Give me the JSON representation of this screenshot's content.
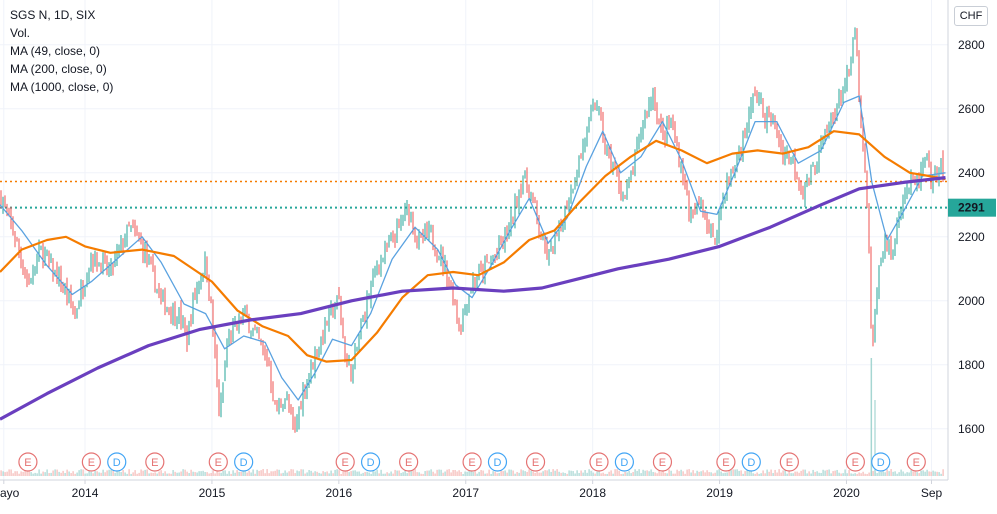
{
  "legend": {
    "symbol": "SGS N, 1D, SIX",
    "volume": "Vol.",
    "ma49": "MA (49, close, 0)",
    "ma200": "MA (200, close, 0)",
    "ma1000": "MA (1000, close, 0)"
  },
  "currency_label": "CHF",
  "colors": {
    "up": "#26a69a",
    "down": "#ef5350",
    "ma49": "#5aa2e0",
    "ma200": "#f57c00",
    "ma1000": "#6a3fbf",
    "last_price": "#26a69a",
    "ref_line": "#f57c00",
    "earnings": "#e57373",
    "dividend": "#42a5f5"
  },
  "chart_data": {
    "type": "candlestick",
    "title": "SGS N, 1D, SIX",
    "ylim": [
      1440,
      2940
    ],
    "y_ticks": [
      1600,
      1800,
      2000,
      2200,
      2400,
      2600,
      2800
    ],
    "x_range": [
      2013.33,
      2020.8
    ],
    "x_ticks": [
      {
        "label": "ayo",
        "x": 2013.36
      },
      {
        "label": "2014",
        "x": 2014.0
      },
      {
        "label": "2015",
        "x": 2015.0
      },
      {
        "label": "2016",
        "x": 2016.0
      },
      {
        "label": "2017",
        "x": 2017.0
      },
      {
        "label": "2018",
        "x": 2018.0
      },
      {
        "label": "2019",
        "x": 2019.0
      },
      {
        "label": "2020",
        "x": 2020.0
      },
      {
        "label": "Sep",
        "x": 2020.67
      }
    ],
    "last_price": {
      "value": 2291,
      "label": "2291"
    },
    "reference_line": {
      "value": 2373
    },
    "price_path": [
      [
        2013.33,
        2330
      ],
      [
        2013.45,
        2200
      ],
      [
        2013.55,
        2050
      ],
      [
        2013.65,
        2160
      ],
      [
        2013.8,
        2060
      ],
      [
        2013.92,
        1960
      ],
      [
        2014.05,
        2140
      ],
      [
        2014.2,
        2090
      ],
      [
        2014.35,
        2230
      ],
      [
        2014.45,
        2170
      ],
      [
        2014.6,
        2000
      ],
      [
        2014.75,
        1950
      ],
      [
        2014.8,
        1870
      ],
      [
        2014.85,
        2000
      ],
      [
        2014.95,
        2130
      ],
      [
        2015.0,
        1950
      ],
      [
        2015.06,
        1630
      ],
      [
        2015.12,
        1870
      ],
      [
        2015.25,
        1960
      ],
      [
        2015.35,
        1890
      ],
      [
        2015.45,
        1800
      ],
      [
        2015.5,
        1650
      ],
      [
        2015.58,
        1700
      ],
      [
        2015.65,
        1590
      ],
      [
        2015.72,
        1720
      ],
      [
        2015.8,
        1810
      ],
      [
        2015.9,
        1930
      ],
      [
        2016.0,
        2010
      ],
      [
        2016.05,
        1820
      ],
      [
        2016.1,
        1770
      ],
      [
        2016.2,
        1960
      ],
      [
        2016.3,
        2110
      ],
      [
        2016.4,
        2170
      ],
      [
        2016.5,
        2250
      ],
      [
        2016.55,
        2290
      ],
      [
        2016.62,
        2180
      ],
      [
        2016.72,
        2210
      ],
      [
        2016.82,
        2120
      ],
      [
        2016.9,
        2020
      ],
      [
        2016.95,
        1920
      ],
      [
        2017.05,
        2060
      ],
      [
        2017.15,
        2100
      ],
      [
        2017.25,
        2150
      ],
      [
        2017.35,
        2230
      ],
      [
        2017.45,
        2390
      ],
      [
        2017.52,
        2330
      ],
      [
        2017.58,
        2220
      ],
      [
        2017.65,
        2130
      ],
      [
        2017.72,
        2200
      ],
      [
        2017.8,
        2310
      ],
      [
        2017.88,
        2420
      ],
      [
        2017.95,
        2520
      ],
      [
        2018.03,
        2630
      ],
      [
        2018.1,
        2470
      ],
      [
        2018.18,
        2400
      ],
      [
        2018.25,
        2310
      ],
      [
        2018.32,
        2420
      ],
      [
        2018.4,
        2560
      ],
      [
        2018.48,
        2650
      ],
      [
        2018.55,
        2500
      ],
      [
        2018.62,
        2560
      ],
      [
        2018.7,
        2410
      ],
      [
        2018.78,
        2250
      ],
      [
        2018.85,
        2310
      ],
      [
        2018.95,
        2180
      ],
      [
        2019.05,
        2360
      ],
      [
        2019.12,
        2420
      ],
      [
        2019.2,
        2520
      ],
      [
        2019.28,
        2660
      ],
      [
        2019.35,
        2580
      ],
      [
        2019.42,
        2560
      ],
      [
        2019.5,
        2470
      ],
      [
        2019.58,
        2440
      ],
      [
        2019.65,
        2340
      ],
      [
        2019.72,
        2400
      ],
      [
        2019.8,
        2480
      ],
      [
        2019.88,
        2560
      ],
      [
        2019.95,
        2640
      ],
      [
        2020.02,
        2700
      ],
      [
        2020.07,
        2860
      ],
      [
        2020.1,
        2610
      ],
      [
        2020.14,
        2430
      ],
      [
        2020.18,
        2150
      ],
      [
        2020.2,
        1800
      ],
      [
        2020.24,
        2050
      ],
      [
        2020.3,
        2200
      ],
      [
        2020.36,
        2130
      ],
      [
        2020.42,
        2300
      ],
      [
        2020.5,
        2370
      ],
      [
        2020.56,
        2360
      ],
      [
        2020.62,
        2440
      ],
      [
        2020.68,
        2350
      ],
      [
        2020.74,
        2450
      ],
      [
        2020.78,
        2291
      ]
    ],
    "series": [
      {
        "name": "MA (49, close, 0)",
        "color": "#5aa2e0",
        "points": [
          [
            2013.33,
            2300
          ],
          [
            2013.5,
            2220
          ],
          [
            2013.7,
            2110
          ],
          [
            2013.9,
            2020
          ],
          [
            2014.05,
            2060
          ],
          [
            2014.25,
            2130
          ],
          [
            2014.45,
            2200
          ],
          [
            2014.6,
            2120
          ],
          [
            2014.78,
            1990
          ],
          [
            2014.95,
            1960
          ],
          [
            2015.1,
            1850
          ],
          [
            2015.25,
            1890
          ],
          [
            2015.42,
            1870
          ],
          [
            2015.55,
            1760
          ],
          [
            2015.68,
            1690
          ],
          [
            2015.82,
            1780
          ],
          [
            2015.95,
            1880
          ],
          [
            2016.1,
            1860
          ],
          [
            2016.25,
            1960
          ],
          [
            2016.42,
            2130
          ],
          [
            2016.6,
            2230
          ],
          [
            2016.78,
            2160
          ],
          [
            2016.92,
            2050
          ],
          [
            2017.05,
            2010
          ],
          [
            2017.2,
            2110
          ],
          [
            2017.35,
            2220
          ],
          [
            2017.5,
            2320
          ],
          [
            2017.65,
            2180
          ],
          [
            2017.8,
            2260
          ],
          [
            2017.95,
            2420
          ],
          [
            2018.08,
            2530
          ],
          [
            2018.22,
            2400
          ],
          [
            2018.38,
            2450
          ],
          [
            2018.55,
            2560
          ],
          [
            2018.7,
            2440
          ],
          [
            2018.85,
            2280
          ],
          [
            2018.98,
            2270
          ],
          [
            2019.12,
            2400
          ],
          [
            2019.28,
            2560
          ],
          [
            2019.45,
            2560
          ],
          [
            2019.62,
            2430
          ],
          [
            2019.8,
            2470
          ],
          [
            2019.98,
            2620
          ],
          [
            2020.1,
            2640
          ],
          [
            2020.2,
            2370
          ],
          [
            2020.32,
            2190
          ],
          [
            2020.45,
            2280
          ],
          [
            2020.6,
            2390
          ],
          [
            2020.78,
            2400
          ]
        ]
      },
      {
        "name": "MA (200, close, 0)",
        "color": "#f57c00",
        "points": [
          [
            2013.33,
            2090
          ],
          [
            2013.5,
            2160
          ],
          [
            2013.7,
            2190
          ],
          [
            2013.85,
            2200
          ],
          [
            2014.0,
            2170
          ],
          [
            2014.2,
            2150
          ],
          [
            2014.45,
            2160
          ],
          [
            2014.7,
            2140
          ],
          [
            2015.0,
            2060
          ],
          [
            2015.2,
            1970
          ],
          [
            2015.4,
            1920
          ],
          [
            2015.6,
            1890
          ],
          [
            2015.75,
            1830
          ],
          [
            2015.9,
            1810
          ],
          [
            2016.1,
            1815
          ],
          [
            2016.3,
            1900
          ],
          [
            2016.5,
            2010
          ],
          [
            2016.7,
            2080
          ],
          [
            2016.9,
            2090
          ],
          [
            2017.1,
            2080
          ],
          [
            2017.3,
            2120
          ],
          [
            2017.5,
            2190
          ],
          [
            2017.7,
            2220
          ],
          [
            2017.9,
            2310
          ],
          [
            2018.1,
            2390
          ],
          [
            2018.3,
            2450
          ],
          [
            2018.5,
            2500
          ],
          [
            2018.7,
            2470
          ],
          [
            2018.9,
            2430
          ],
          [
            2019.1,
            2460
          ],
          [
            2019.3,
            2470
          ],
          [
            2019.5,
            2460
          ],
          [
            2019.7,
            2480
          ],
          [
            2019.9,
            2530
          ],
          [
            2020.1,
            2520
          ],
          [
            2020.3,
            2450
          ],
          [
            2020.5,
            2400
          ],
          [
            2020.65,
            2390
          ],
          [
            2020.78,
            2380
          ]
        ]
      },
      {
        "name": "MA (1000, close, 0)",
        "color": "#6a3fbf",
        "points": [
          [
            2013.33,
            1630
          ],
          [
            2013.7,
            1710
          ],
          [
            2014.1,
            1790
          ],
          [
            2014.5,
            1860
          ],
          [
            2014.9,
            1910
          ],
          [
            2015.3,
            1940
          ],
          [
            2015.7,
            1960
          ],
          [
            2016.1,
            2000
          ],
          [
            2016.5,
            2030
          ],
          [
            2016.9,
            2040
          ],
          [
            2017.3,
            2030
          ],
          [
            2017.6,
            2040
          ],
          [
            2017.9,
            2070
          ],
          [
            2018.2,
            2100
          ],
          [
            2018.6,
            2130
          ],
          [
            2019.0,
            2170
          ],
          [
            2019.4,
            2230
          ],
          [
            2019.8,
            2300
          ],
          [
            2020.1,
            2350
          ],
          [
            2020.45,
            2370
          ],
          [
            2020.78,
            2385
          ]
        ]
      }
    ],
    "events": [
      {
        "type": "E",
        "x": 2013.55
      },
      {
        "type": "E",
        "x": 2014.05
      },
      {
        "type": "D",
        "x": 2014.25
      },
      {
        "type": "E",
        "x": 2014.55
      },
      {
        "type": "E",
        "x": 2015.05
      },
      {
        "type": "D",
        "x": 2015.25
      },
      {
        "type": "E",
        "x": 2016.05
      },
      {
        "type": "D",
        "x": 2016.25
      },
      {
        "type": "E",
        "x": 2016.55
      },
      {
        "type": "E",
        "x": 2017.05
      },
      {
        "type": "D",
        "x": 2017.25
      },
      {
        "type": "E",
        "x": 2017.55
      },
      {
        "type": "E",
        "x": 2018.05
      },
      {
        "type": "D",
        "x": 2018.25
      },
      {
        "type": "E",
        "x": 2018.55
      },
      {
        "type": "E",
        "x": 2019.05
      },
      {
        "type": "D",
        "x": 2019.25
      },
      {
        "type": "E",
        "x": 2019.55
      },
      {
        "type": "E",
        "x": 2020.07
      },
      {
        "type": "D",
        "x": 2020.27
      },
      {
        "type": "E",
        "x": 2020.55
      }
    ]
  }
}
